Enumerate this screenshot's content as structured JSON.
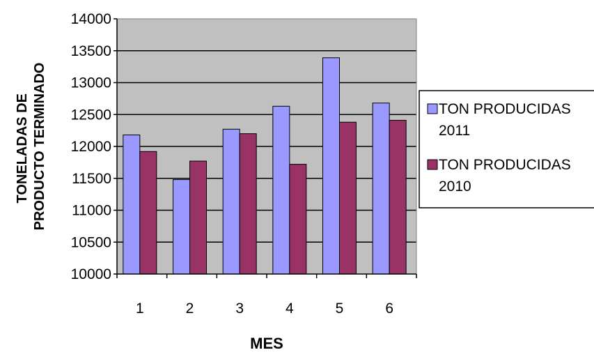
{
  "chart_data": {
    "type": "bar",
    "title": "",
    "xlabel": "MES",
    "ylabel_lines": [
      "TONELADAS DE",
      "PRODUCTO TERMINADO"
    ],
    "categories": [
      "1",
      "2",
      "3",
      "4",
      "5",
      "6"
    ],
    "series": [
      {
        "name_lines": [
          "TON PRODUCIDAS",
          "2011"
        ],
        "color": "#9999ff",
        "values": [
          12180,
          11480,
          12270,
          12630,
          13390,
          12680
        ]
      },
      {
        "name_lines": [
          "TON PRODUCIDAS",
          "2010"
        ],
        "color": "#993366",
        "values": [
          11920,
          11770,
          12200,
          11720,
          12380,
          12410
        ]
      }
    ],
    "ylim": [
      10000,
      14000
    ],
    "yticks": [
      "10000",
      "10500",
      "11000",
      "11500",
      "12000",
      "12500",
      "13000",
      "13500",
      "14000"
    ],
    "grid": true,
    "plot_background": "#c0c0c0",
    "legend_position": "right"
  }
}
